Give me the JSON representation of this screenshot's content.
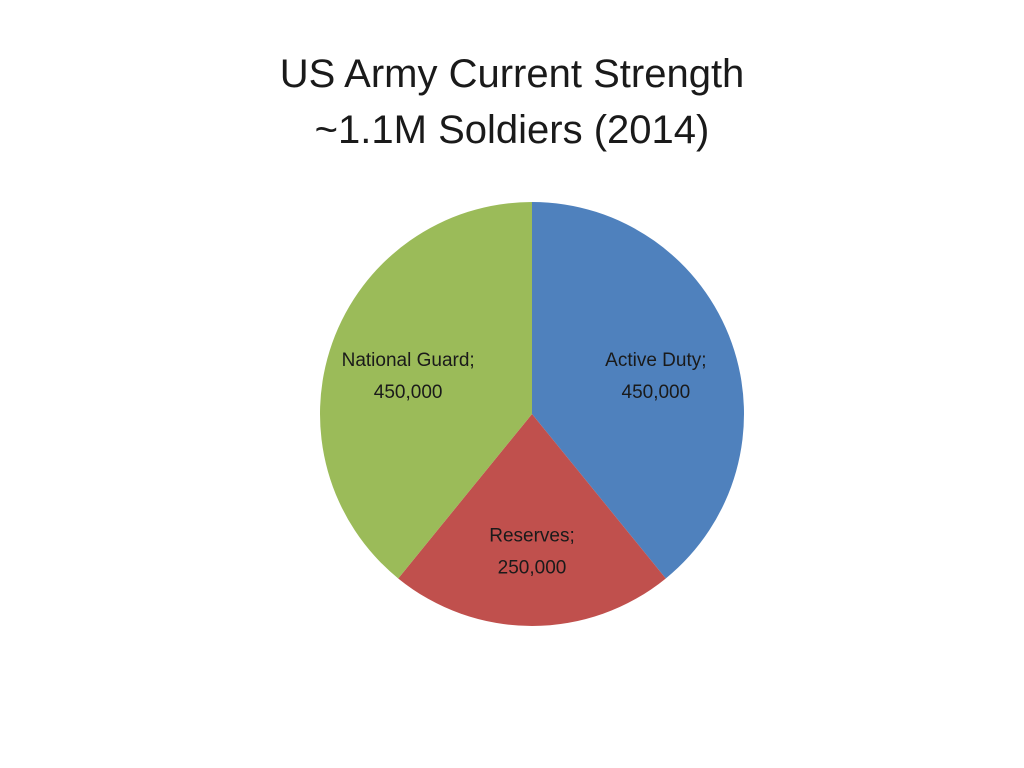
{
  "title": {
    "line1": "US Army Current Strength",
    "line2": "~1.1M Soldiers (2014)"
  },
  "chart_data": {
    "type": "pie",
    "start_angle_deg": 0,
    "direction": "clockwise",
    "slices": [
      {
        "label": "Active Duty",
        "value": 450000,
        "display": "450,000",
        "color": "#4F81BD"
      },
      {
        "label": "Reserves",
        "value": 250000,
        "display": "250,000",
        "color": "#C0504D"
      },
      {
        "label": "National Guard",
        "value": 450000,
        "display": "450,000",
        "color": "#9BBB59"
      }
    ],
    "legend": "none"
  }
}
